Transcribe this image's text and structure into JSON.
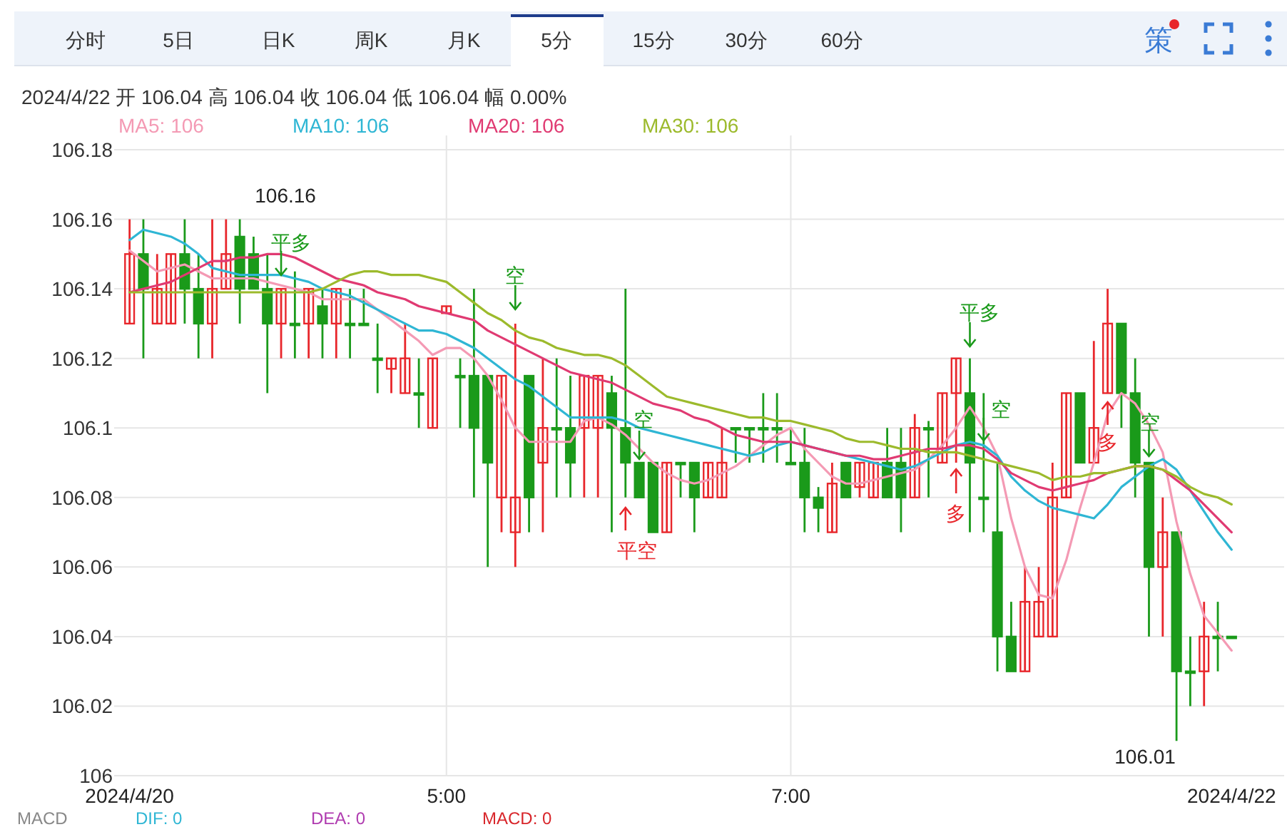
{
  "chart_data": {
    "type": "candlestick",
    "categories": [
      "2024/4/20",
      null,
      null,
      null,
      null,
      null,
      null,
      null,
      null,
      null,
      null,
      null,
      null,
      null,
      null,
      null,
      null,
      null,
      null,
      null,
      null,
      null,
      null,
      "5:00",
      null,
      null,
      null,
      null,
      null,
      null,
      null,
      null,
      null,
      null,
      null,
      null,
      null,
      null,
      null,
      null,
      null,
      null,
      null,
      null,
      null,
      null,
      null,
      null,
      "7:00",
      null,
      null,
      null,
      null,
      null,
      null,
      null,
      null,
      null,
      null,
      null,
      null,
      null,
      null,
      null,
      null,
      null,
      null,
      null,
      null,
      null,
      null,
      null,
      null,
      null,
      null,
      null,
      null,
      null,
      null,
      null,
      "2024/4/22"
    ],
    "ohlc": [
      [
        106.13,
        106.16,
        106.13,
        106.15
      ],
      [
        106.15,
        106.16,
        106.12,
        106.14
      ],
      [
        106.13,
        106.15,
        106.13,
        106.14
      ],
      [
        106.13,
        106.15,
        106.13,
        106.15
      ],
      [
        106.15,
        106.16,
        106.13,
        106.14
      ],
      [
        106.14,
        106.15,
        106.12,
        106.13
      ],
      [
        106.13,
        106.16,
        106.12,
        106.14
      ],
      [
        106.14,
        106.16,
        106.14,
        106.15
      ],
      [
        106.155,
        106.16,
        106.13,
        106.14
      ],
      [
        106.15,
        106.155,
        106.14,
        106.14
      ],
      [
        106.14,
        106.15,
        106.11,
        106.13
      ],
      [
        106.13,
        106.14,
        106.12,
        106.14
      ],
      [
        106.13,
        106.145,
        106.12,
        106.13
      ],
      [
        106.13,
        106.14,
        106.12,
        106.14
      ],
      [
        106.135,
        106.14,
        106.12,
        106.13
      ],
      [
        106.13,
        106.14,
        106.12,
        106.14
      ],
      [
        106.13,
        106.14,
        106.12,
        106.13
      ],
      [
        106.13,
        106.14,
        106.13,
        106.13
      ],
      [
        106.12,
        106.13,
        106.11,
        106.12
      ],
      [
        106.117,
        106.12,
        106.11,
        106.12
      ],
      [
        106.11,
        106.13,
        106.11,
        106.12
      ],
      [
        106.11,
        106.12,
        106.1,
        106.11
      ],
      [
        106.1,
        106.12,
        106.1,
        106.12
      ],
      [
        106.133,
        106.135,
        106.133,
        106.135
      ],
      [
        106.115,
        106.12,
        106.1,
        106.115
      ],
      [
        106.115,
        106.14,
        106.08,
        106.1
      ],
      [
        106.115,
        106.115,
        106.06,
        106.09
      ],
      [
        106.08,
        106.115,
        106.07,
        106.115
      ],
      [
        106.07,
        106.13,
        106.06,
        106.08
      ],
      [
        106.115,
        106.115,
        106.07,
        106.08
      ],
      [
        106.09,
        106.12,
        106.07,
        106.1
      ],
      [
        106.1,
        106.12,
        106.08,
        106.1
      ],
      [
        106.1,
        106.115,
        106.08,
        106.09
      ],
      [
        106.1,
        106.115,
        106.08,
        106.115
      ],
      [
        106.1,
        106.115,
        106.08,
        106.115
      ],
      [
        106.11,
        106.115,
        106.07,
        106.1
      ],
      [
        106.1,
        106.14,
        106.08,
        106.09
      ],
      [
        106.09,
        106.09,
        106.08,
        106.08
      ],
      [
        106.09,
        106.09,
        106.07,
        106.07
      ],
      [
        106.07,
        106.09,
        106.07,
        106.09
      ],
      [
        106.09,
        106.09,
        106.08,
        106.09
      ],
      [
        106.09,
        106.09,
        106.07,
        106.08
      ],
      [
        106.08,
        106.09,
        106.08,
        106.09
      ],
      [
        106.08,
        106.1,
        106.08,
        106.09
      ],
      [
        106.1,
        106.1,
        106.09,
        106.1
      ],
      [
        106.1,
        106.1,
        106.09,
        106.1
      ],
      [
        106.1,
        106.11,
        106.09,
        106.1
      ],
      [
        106.1,
        106.11,
        106.09,
        106.1
      ],
      [
        106.09,
        106.1,
        106.09,
        106.09
      ],
      [
        106.09,
        106.1,
        106.07,
        106.08
      ],
      [
        106.08,
        106.083,
        106.07,
        106.077
      ],
      [
        106.07,
        106.09,
        106.07,
        106.084
      ],
      [
        106.09,
        106.09,
        106.08,
        106.08
      ],
      [
        106.083,
        106.09,
        106.08,
        106.09
      ],
      [
        106.08,
        106.09,
        106.08,
        106.09
      ],
      [
        106.09,
        106.1,
        106.08,
        106.08
      ],
      [
        106.09,
        106.1,
        106.07,
        106.08
      ],
      [
        106.08,
        106.104,
        106.08,
        106.1
      ],
      [
        106.1,
        106.102,
        106.08,
        106.1
      ],
      [
        106.09,
        106.11,
        106.09,
        106.11
      ],
      [
        106.11,
        106.12,
        106.09,
        106.12
      ],
      [
        106.11,
        106.12,
        106.07,
        106.09
      ],
      [
        106.08,
        106.11,
        106.07,
        106.08
      ],
      [
        106.07,
        106.09,
        106.03,
        106.04
      ],
      [
        106.04,
        106.05,
        106.03,
        106.03
      ],
      [
        106.03,
        106.06,
        106.03,
        106.05
      ],
      [
        106.04,
        106.06,
        106.04,
        106.05
      ],
      [
        106.04,
        106.09,
        106.04,
        106.08
      ],
      [
        106.08,
        106.11,
        106.08,
        106.11
      ],
      [
        106.11,
        106.11,
        106.09,
        106.09
      ],
      [
        106.09,
        106.125,
        106.09,
        106.1
      ],
      [
        106.11,
        106.14,
        106.11,
        106.13
      ],
      [
        106.13,
        106.13,
        106.1,
        106.11
      ],
      [
        106.11,
        106.12,
        106.08,
        106.09
      ],
      [
        106.09,
        106.09,
        106.04,
        106.06
      ],
      [
        106.06,
        106.08,
        106.04,
        106.07
      ],
      [
        106.07,
        106.07,
        106.01,
        106.03
      ],
      [
        106.03,
        106.04,
        106.02,
        106.03
      ],
      [
        106.03,
        106.05,
        106.02,
        106.04
      ],
      [
        106.04,
        106.05,
        106.03,
        106.04
      ],
      [
        106.04,
        106.04,
        106.04,
        106.04
      ]
    ],
    "colors": [
      "#e8262b",
      "#1a9a1a",
      "#e8262b",
      "#e8262b",
      "#1a9a1a",
      "#1a9a1a",
      "#e8262b",
      "#e8262b",
      "#1a9a1a",
      "#1a9a1a",
      "#1a9a1a",
      "#e8262b",
      "#1a9a1a",
      "#e8262b",
      "#1a9a1a",
      "#e8262b",
      "#1a9a1a",
      "#1a9a1a",
      "#1a9a1a",
      "#e8262b",
      "#e8262b",
      "#1a9a1a",
      "#e8262b",
      "#e8262b",
      "#1a9a1a",
      "#1a9a1a",
      "#1a9a1a",
      "#e8262b",
      "#e8262b",
      "#1a9a1a",
      "#e8262b",
      "#1a9a1a",
      "#1a9a1a",
      "#e8262b",
      "#e8262b",
      "#1a9a1a",
      "#1a9a1a",
      "#1a9a1a",
      "#1a9a1a",
      "#e8262b",
      "#1a9a1a",
      "#1a9a1a",
      "#e8262b",
      "#e8262b",
      "#1a9a1a",
      "#1a9a1a",
      "#1a9a1a",
      "#1a9a1a",
      "#1a9a1a",
      "#1a9a1a",
      "#1a9a1a",
      "#e8262b",
      "#1a9a1a",
      "#e8262b",
      "#e8262b",
      "#1a9a1a",
      "#1a9a1a",
      "#e8262b",
      "#1a9a1a",
      "#e8262b",
      "#e8262b",
      "#1a9a1a",
      "#1a9a1a",
      "#1a9a1a",
      "#1a9a1a",
      "#e8262b",
      "#e8262b",
      "#e8262b",
      "#e8262b",
      "#1a9a1a",
      "#e8262b",
      "#e8262b",
      "#1a9a1a",
      "#1a9a1a",
      "#1a9a1a",
      "#e8262b",
      "#1a9a1a",
      "#1a9a1a",
      "#e8262b",
      "#1a9a1a",
      "#1a9a1a"
    ],
    "series": [
      {
        "type": "line",
        "name": "MA5: 106",
        "color": "#f49ab4",
        "values": [
          106.151,
          106.148,
          106.145,
          106.146,
          106.147,
          106.145,
          106.143,
          106.143,
          106.143,
          106.143,
          106.142,
          106.141,
          106.14,
          106.139,
          106.137,
          106.137,
          106.137,
          106.137,
          106.134,
          106.131,
          106.128,
          106.125,
          106.121,
          106.123,
          106.123,
          106.12,
          106.115,
          106.108,
          106.1,
          106.096,
          106.096,
          106.096,
          106.096,
          106.102,
          106.103,
          106.101,
          106.098,
          106.094,
          106.09,
          106.087,
          106.085,
          106.084,
          106.085,
          106.087,
          106.089,
          106.092,
          106.095,
          106.098,
          106.1,
          106.094,
          106.09,
          106.086,
          106.084,
          106.084,
          106.085,
          106.086,
          106.087,
          106.088,
          106.091,
          106.095,
          106.1,
          106.106,
          106.1,
          106.092,
          106.074,
          106.06,
          106.052,
          106.051,
          106.062,
          106.077,
          106.09,
          106.104,
          106.11,
          106.107,
          106.101,
          106.093,
          106.073,
          106.058,
          106.046,
          106.041,
          106.036
        ]
      },
      {
        "type": "line",
        "name": "MA10: 106",
        "color": "#2fb6d4",
        "values": [
          106.154,
          106.157,
          106.156,
          106.155,
          106.153,
          106.15,
          106.146,
          106.145,
          106.144,
          106.144,
          106.144,
          106.144,
          106.143,
          106.142,
          106.14,
          106.139,
          106.138,
          106.136,
          106.134,
          106.132,
          106.13,
          106.128,
          106.128,
          106.127,
          106.125,
          106.123,
          106.12,
          106.117,
          106.114,
          106.112,
          106.109,
          106.106,
          106.103,
          106.103,
          106.103,
          106.103,
          106.102,
          106.1,
          106.099,
          106.098,
          106.097,
          106.096,
          106.095,
          106.094,
          106.093,
          106.092,
          106.093,
          106.095,
          106.096,
          106.095,
          106.094,
          106.093,
          106.092,
          106.091,
          106.09,
          106.089,
          106.088,
          106.089,
          106.091,
          106.093,
          106.095,
          106.096,
          106.095,
          106.092,
          106.086,
          106.082,
          106.079,
          106.077,
          106.076,
          106.075,
          106.074,
          106.078,
          106.083,
          106.086,
          106.089,
          106.091,
          106.088,
          106.082,
          106.076,
          106.07,
          106.065
        ]
      },
      {
        "type": "line",
        "name": "MA20: 106",
        "color": "#e03a72",
        "values": [
          106.139,
          106.14,
          106.141,
          106.142,
          106.144,
          106.146,
          106.148,
          106.148,
          106.149,
          106.149,
          106.15,
          106.15,
          106.149,
          106.147,
          106.145,
          106.143,
          106.142,
          106.141,
          106.139,
          106.138,
          106.137,
          106.135,
          106.134,
          106.133,
          106.132,
          106.131,
          106.128,
          106.126,
          106.124,
          106.122,
          106.12,
          106.118,
          106.116,
          106.115,
          106.114,
          106.113,
          106.111,
          106.109,
          106.107,
          106.106,
          106.105,
          106.103,
          106.102,
          106.1,
          106.098,
          106.097,
          106.096,
          106.096,
          106.096,
          106.095,
          106.094,
          106.093,
          106.092,
          106.092,
          106.091,
          106.091,
          106.092,
          106.093,
          106.094,
          106.094,
          106.095,
          106.095,
          106.094,
          106.091,
          106.087,
          106.085,
          106.083,
          106.082,
          106.083,
          106.084,
          106.085,
          106.087,
          106.088,
          106.089,
          106.089,
          106.088,
          106.085,
          106.082,
          106.078,
          106.074,
          106.07
        ]
      },
      {
        "type": "line",
        "name": "MA30: 106",
        "color": "#9cba2c",
        "values": [
          106.139,
          106.139,
          106.139,
          106.139,
          106.139,
          106.139,
          106.139,
          106.139,
          106.139,
          106.139,
          106.139,
          106.139,
          106.139,
          106.139,
          106.14,
          106.142,
          106.144,
          106.145,
          106.145,
          106.144,
          106.144,
          106.144,
          106.143,
          106.142,
          106.139,
          106.136,
          106.133,
          106.131,
          106.128,
          106.126,
          106.125,
          106.123,
          106.122,
          106.121,
          106.121,
          106.12,
          106.118,
          106.115,
          106.112,
          106.109,
          106.108,
          106.107,
          106.106,
          106.105,
          106.104,
          106.103,
          106.103,
          106.102,
          106.102,
          106.101,
          106.1,
          106.099,
          106.097,
          106.096,
          106.096,
          106.095,
          106.094,
          106.094,
          106.093,
          106.093,
          106.093,
          106.092,
          106.091,
          106.09,
          106.089,
          106.088,
          106.087,
          106.085,
          106.086,
          106.086,
          106.087,
          106.087,
          106.088,
          106.089,
          106.089,
          106.088,
          106.086,
          106.083,
          106.081,
          106.08,
          106.078
        ]
      }
    ],
    "ylim": [
      106,
      106.18
    ],
    "yticks": [
      106,
      106.02,
      106.04,
      106.06,
      106.08,
      106.1,
      106.12,
      106.14,
      106.16,
      106.18
    ],
    "grid": true,
    "legend": "top left",
    "annotations": [
      "2024/4/22  开 106.04  高 106.04  收 106.04  低 106.04  幅 0.00%",
      "分时",
      "5日",
      "日K",
      "周K",
      "月K",
      "5分",
      "15分",
      "30分",
      "60分",
      "106.16",
      "106.01",
      "平多",
      "空",
      "平空",
      "空",
      "平多",
      "空",
      "多",
      "空",
      "多",
      "策",
      "MACD",
      "DIF: 0",
      "DEA: 0",
      "MACD: 0"
    ]
  }
}
